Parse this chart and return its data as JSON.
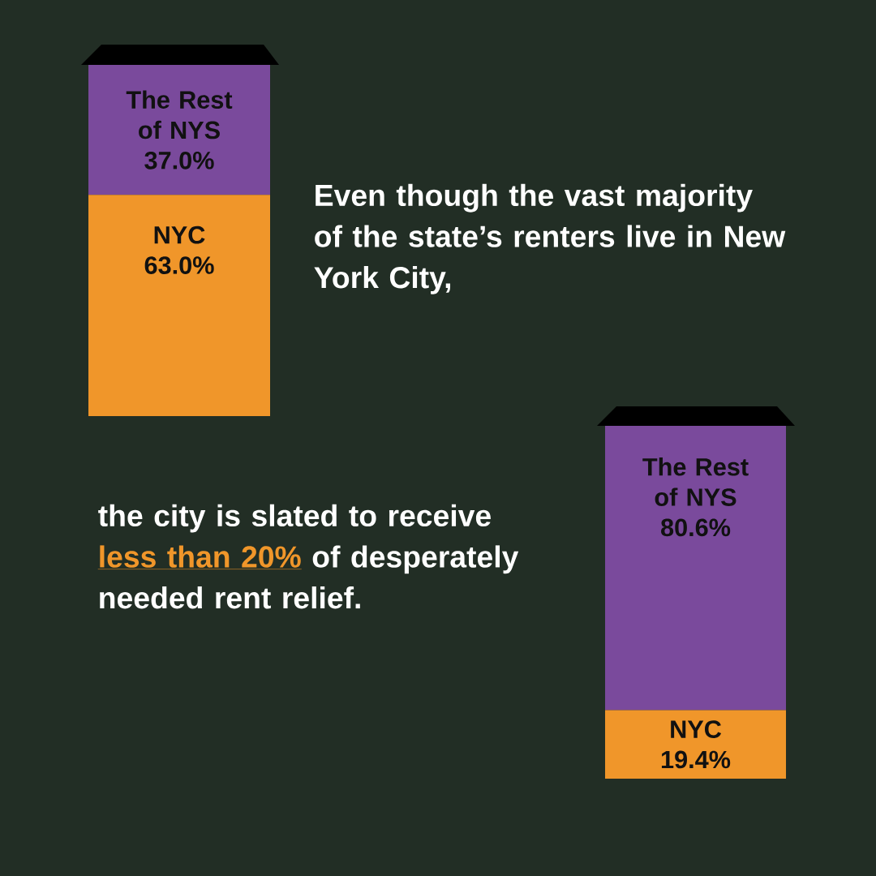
{
  "chart_data": [
    {
      "type": "bar",
      "stacked": true,
      "categories": [
        null
      ],
      "series": [
        {
          "name": "NYC",
          "color": "#f0962a",
          "values": [
            63.0
          ],
          "value_labels": [
            "63.0%"
          ]
        },
        {
          "name": "The Rest of NYS",
          "color": "#7a4a9c",
          "values": [
            37.0
          ],
          "value_labels": [
            "37.0%"
          ]
        }
      ],
      "annotations": [
        "Even though the vast majority of the state’s renters live in New York City,"
      ]
    },
    {
      "type": "bar",
      "stacked": true,
      "categories": [
        null
      ],
      "series": [
        {
          "name": "NYC",
          "color": "#f0962a",
          "values": [
            19.4
          ],
          "value_labels": [
            "19.4%"
          ]
        },
        {
          "name": "The Rest of NYS",
          "color": "#7a4a9c",
          "values": [
            80.6
          ],
          "value_labels": [
            "80.6%"
          ]
        }
      ],
      "annotations": [
        "the city is slated to receive",
        "less than 20%",
        "of desperately needed rent relief."
      ]
    }
  ]
}
